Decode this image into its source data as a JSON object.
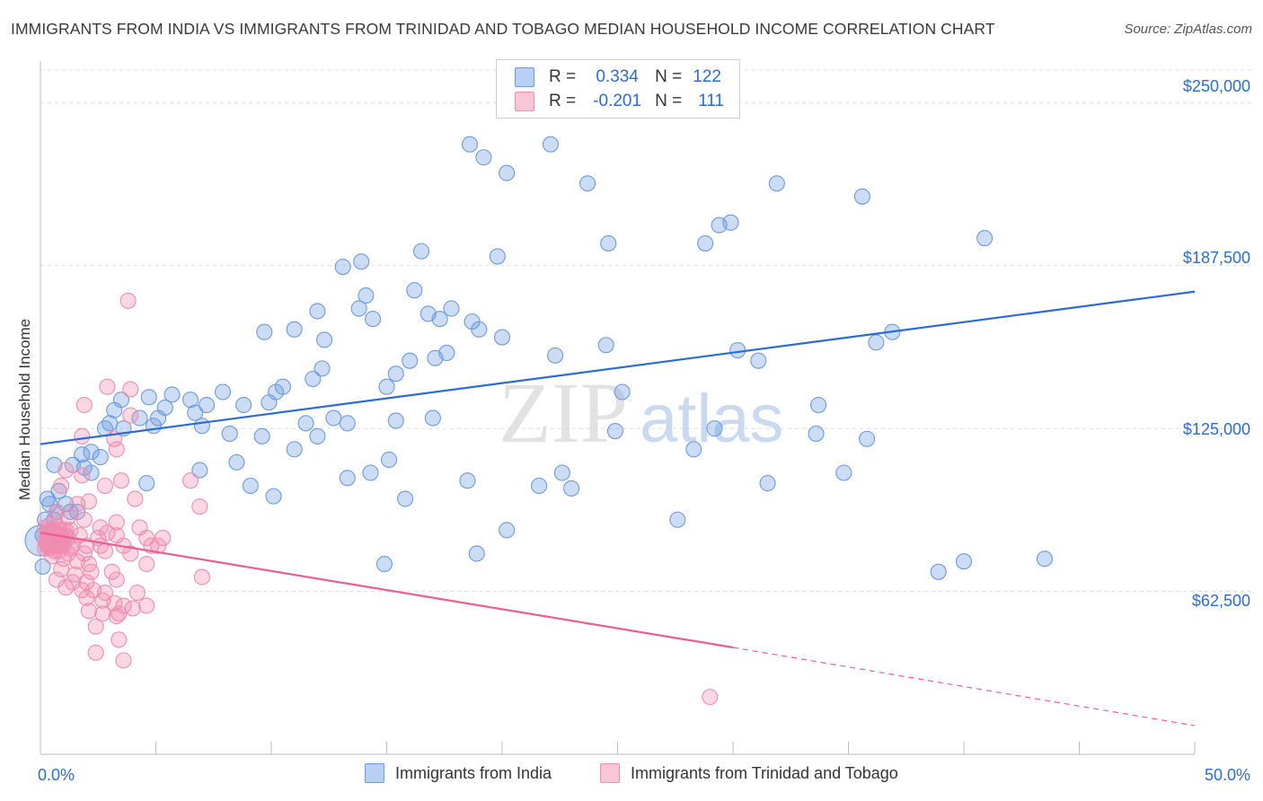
{
  "header": {
    "title": "IMMIGRANTS FROM INDIA VS IMMIGRANTS FROM TRINIDAD AND TOBAGO MEDIAN HOUSEHOLD INCOME CORRELATION CHART",
    "source": "Source: ZipAtlas.com"
  },
  "legend": {
    "r_label": "R =",
    "n_label": "N =",
    "rows": [
      {
        "r": "0.334",
        "n": "122"
      },
      {
        "r": "-0.201",
        "n": "111"
      }
    ]
  },
  "watermark": {
    "zip": "ZIP",
    "atlas": "atlas"
  },
  "chart_data": {
    "type": "scatter",
    "ylabel": "Median Household Income",
    "xlim": [
      0,
      50
    ],
    "ylim": [
      0,
      262500
    ],
    "x_tick_labels": [
      "0.0%",
      "50.0%"
    ],
    "y_tick_labels": [
      "$62,500",
      "$125,000",
      "$187,500",
      "$250,000"
    ],
    "y_ticks": [
      62500,
      125000,
      187500,
      250000
    ],
    "colors": {
      "india": "#6b9be0",
      "trinidad": "#f08db0",
      "india_line": "#2b6cd4",
      "trinidad_line": "#e8608f",
      "tick_text": "#2b6cd4"
    },
    "series": [
      {
        "name": "Immigrants from India",
        "r": 0.334,
        "n": 122,
        "trend": {
          "x": [
            0,
            50
          ],
          "y": [
            119000,
            177500
          ]
        },
        "points": [
          [
            18.6,
            234000
          ],
          [
            19.2,
            229000
          ],
          [
            20.2,
            223000
          ],
          [
            22.1,
            234000
          ],
          [
            23.7,
            219000
          ],
          [
            31.9,
            219000
          ],
          [
            35.6,
            214000
          ],
          [
            29.9,
            204000
          ],
          [
            29.4,
            203000
          ],
          [
            24.6,
            196000
          ],
          [
            28.8,
            196000
          ],
          [
            40.9,
            198000
          ],
          [
            16.5,
            193000
          ],
          [
            19.8,
            191000
          ],
          [
            13.9,
            189000
          ],
          [
            13.1,
            187000
          ],
          [
            16.2,
            178000
          ],
          [
            14.1,
            176000
          ],
          [
            13.8,
            171000
          ],
          [
            17.8,
            171000
          ],
          [
            12.0,
            170000
          ],
          [
            16.8,
            169000
          ],
          [
            17.3,
            167000
          ],
          [
            14.4,
            167000
          ],
          [
            18.7,
            166000
          ],
          [
            19.0,
            163000
          ],
          [
            11.0,
            163000
          ],
          [
            9.7,
            162000
          ],
          [
            20.0,
            160000
          ],
          [
            12.3,
            159000
          ],
          [
            24.5,
            157000
          ],
          [
            30.2,
            155000
          ],
          [
            36.2,
            158000
          ],
          [
            36.9,
            162000
          ],
          [
            17.1,
            152000
          ],
          [
            16.0,
            151000
          ],
          [
            17.6,
            154000
          ],
          [
            22.3,
            153000
          ],
          [
            31.1,
            151000
          ],
          [
            12.2,
            148000
          ],
          [
            11.8,
            144000
          ],
          [
            10.5,
            141000
          ],
          [
            7.9,
            139000
          ],
          [
            10.2,
            139000
          ],
          [
            9.9,
            135000
          ],
          [
            15.4,
            146000
          ],
          [
            15.0,
            141000
          ],
          [
            25.2,
            139000
          ],
          [
            6.5,
            136000
          ],
          [
            7.2,
            134000
          ],
          [
            8.8,
            134000
          ],
          [
            11.5,
            127000
          ],
          [
            12.7,
            129000
          ],
          [
            13.3,
            127000
          ],
          [
            5.4,
            133000
          ],
          [
            4.7,
            137000
          ],
          [
            5.7,
            138000
          ],
          [
            3.5,
            136000
          ],
          [
            3.2,
            132000
          ],
          [
            5.1,
            129000
          ],
          [
            4.3,
            129000
          ],
          [
            3.0,
            127000
          ],
          [
            2.8,
            125000
          ],
          [
            3.6,
            125000
          ],
          [
            4.9,
            126000
          ],
          [
            6.7,
            131000
          ],
          [
            7.0,
            126000
          ],
          [
            8.2,
            123000
          ],
          [
            9.6,
            122000
          ],
          [
            12.0,
            122000
          ],
          [
            15.4,
            128000
          ],
          [
            11.0,
            117000
          ],
          [
            6.9,
            109000
          ],
          [
            8.5,
            112000
          ],
          [
            2.2,
            116000
          ],
          [
            2.6,
            114000
          ],
          [
            1.8,
            115000
          ],
          [
            1.4,
            111000
          ],
          [
            1.9,
            110000
          ],
          [
            2.2,
            108000
          ],
          [
            0.6,
            111000
          ],
          [
            4.6,
            104000
          ],
          [
            9.1,
            103000
          ],
          [
            10.1,
            99000
          ],
          [
            13.3,
            106000
          ],
          [
            14.3,
            108000
          ],
          [
            15.1,
            113000
          ],
          [
            17.0,
            129000
          ],
          [
            22.6,
            108000
          ],
          [
            24.9,
            124000
          ],
          [
            28.3,
            117000
          ],
          [
            29.2,
            125000
          ],
          [
            33.6,
            123000
          ],
          [
            33.7,
            134000
          ],
          [
            31.5,
            104000
          ],
          [
            34.8,
            108000
          ],
          [
            35.8,
            121000
          ],
          [
            23.0,
            102000
          ],
          [
            21.6,
            103000
          ],
          [
            18.5,
            105000
          ],
          [
            15.8,
            98000
          ],
          [
            20.2,
            86000
          ],
          [
            18.9,
            77000
          ],
          [
            14.9,
            73000
          ],
          [
            27.6,
            90000
          ],
          [
            38.9,
            70000
          ],
          [
            40.0,
            74000
          ],
          [
            43.5,
            75000
          ],
          [
            0.8,
            101000
          ],
          [
            0.3,
            98000
          ],
          [
            0.4,
            96000
          ],
          [
            0.2,
            90000
          ],
          [
            1.1,
            96000
          ],
          [
            0.9,
            84000
          ],
          [
            0.5,
            86000
          ],
          [
            0.1,
            72000
          ],
          [
            0.6,
            90000
          ],
          [
            0.3,
            80000
          ],
          [
            0.7,
            93000
          ],
          [
            1.3,
            93000
          ],
          [
            0.1,
            84000
          ],
          [
            1.6,
            93000
          ]
        ]
      },
      {
        "name": "Immigrants from Trinidad and Tobago",
        "r": -0.201,
        "n": 111,
        "trend": {
          "x": [
            0,
            30
          ],
          "y": [
            85000,
            41000
          ]
        },
        "trend_dashed": {
          "x": [
            30,
            50
          ],
          "y": [
            41000,
            11000
          ]
        },
        "points": [
          [
            3.8,
            174000
          ],
          [
            2.9,
            141000
          ],
          [
            3.9,
            140000
          ],
          [
            1.9,
            134000
          ],
          [
            3.9,
            130000
          ],
          [
            1.8,
            122000
          ],
          [
            3.2,
            121000
          ],
          [
            3.3,
            117000
          ],
          [
            1.1,
            109000
          ],
          [
            0.9,
            103000
          ],
          [
            1.8,
            107000
          ],
          [
            2.8,
            103000
          ],
          [
            3.5,
            105000
          ],
          [
            4.1,
            98000
          ],
          [
            1.6,
            96000
          ],
          [
            2.1,
            97000
          ],
          [
            6.9,
            95000
          ],
          [
            0.7,
            93000
          ],
          [
            1.2,
            91000
          ],
          [
            1.9,
            90000
          ],
          [
            0.4,
            88000
          ],
          [
            0.8,
            87000
          ],
          [
            1.3,
            86000
          ],
          [
            2.6,
            87000
          ],
          [
            3.3,
            89000
          ],
          [
            4.3,
            87000
          ],
          [
            2.9,
            85000
          ],
          [
            0.5,
            84000
          ],
          [
            1.1,
            84000
          ],
          [
            1.7,
            84000
          ],
          [
            2.5,
            83000
          ],
          [
            3.3,
            84000
          ],
          [
            4.6,
            83000
          ],
          [
            5.3,
            83000
          ],
          [
            0.3,
            81000
          ],
          [
            0.9,
            81000
          ],
          [
            1.4,
            80000
          ],
          [
            2.0,
            80000
          ],
          [
            2.6,
            80000
          ],
          [
            3.6,
            80000
          ],
          [
            4.8,
            80000
          ],
          [
            5.1,
            80000
          ],
          [
            0.6,
            78000
          ],
          [
            1.2,
            77000
          ],
          [
            1.9,
            77000
          ],
          [
            2.8,
            78000
          ],
          [
            3.9,
            77000
          ],
          [
            0.5,
            76000
          ],
          [
            1.0,
            75000
          ],
          [
            1.6,
            74000
          ],
          [
            2.1,
            73000
          ],
          [
            4.6,
            73000
          ],
          [
            0.9,
            71000
          ],
          [
            1.5,
            69000
          ],
          [
            2.2,
            70000
          ],
          [
            3.1,
            70000
          ],
          [
            0.7,
            67000
          ],
          [
            1.4,
            66000
          ],
          [
            2.0,
            66000
          ],
          [
            3.3,
            67000
          ],
          [
            1.1,
            64000
          ],
          [
            1.8,
            63000
          ],
          [
            2.3,
            63000
          ],
          [
            2.8,
            62000
          ],
          [
            4.2,
            62000
          ],
          [
            2.0,
            60000
          ],
          [
            2.7,
            59000
          ],
          [
            3.2,
            58000
          ],
          [
            3.6,
            57000
          ],
          [
            4.0,
            56000
          ],
          [
            4.6,
            57000
          ],
          [
            2.1,
            55000
          ],
          [
            2.7,
            54000
          ],
          [
            3.4,
            54000
          ],
          [
            3.3,
            53000
          ],
          [
            2.4,
            49000
          ],
          [
            3.4,
            44000
          ],
          [
            2.4,
            39000
          ],
          [
            3.6,
            36000
          ],
          [
            7.0,
            68000
          ],
          [
            6.5,
            105000
          ],
          [
            29.0,
            22000
          ],
          [
            0.2,
            82000
          ],
          [
            0.3,
            85000
          ],
          [
            0.4,
            79000
          ],
          [
            0.5,
            86000
          ],
          [
            0.6,
            80000
          ],
          [
            0.7,
            85000
          ],
          [
            0.8,
            78000
          ],
          [
            0.9,
            84000
          ],
          [
            1.0,
            82000
          ],
          [
            1.1,
            86000
          ],
          [
            1.2,
            83000
          ],
          [
            1.3,
            79000
          ],
          [
            0.2,
            87000
          ],
          [
            0.3,
            80000
          ],
          [
            0.4,
            83000
          ],
          [
            0.5,
            81000
          ],
          [
            0.6,
            84000
          ],
          [
            0.7,
            82000
          ],
          [
            0.8,
            83000
          ],
          [
            0.9,
            80000
          ],
          [
            1.0,
            86000
          ],
          [
            0.2,
            79000
          ],
          [
            0.3,
            84000
          ],
          [
            0.4,
            86000
          ],
          [
            0.5,
            80000
          ],
          [
            0.6,
            82000
          ],
          [
            0.7,
            80000
          ],
          [
            0.8,
            86000
          ],
          [
            1.0,
            80000
          ]
        ]
      }
    ]
  }
}
